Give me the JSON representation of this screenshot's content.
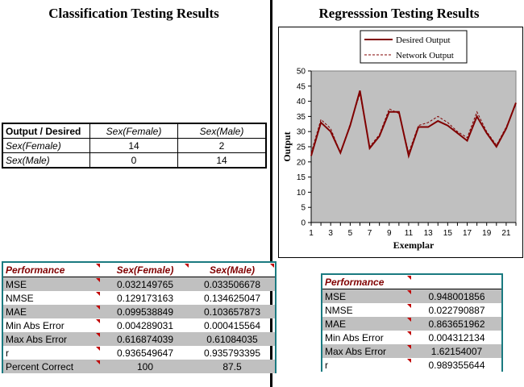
{
  "left_title": "Classification Testing Results",
  "right_title": "Regresssion Testing Results",
  "confusion": {
    "headers": [
      "Output / Desired",
      "Sex(Female)",
      "Sex(Male)"
    ],
    "rows": [
      {
        "label": "Sex(Female)",
        "values": [
          "14",
          "2"
        ]
      },
      {
        "label": "Sex(Male)",
        "values": [
          "0",
          "14"
        ]
      }
    ]
  },
  "perf_left": {
    "headers": [
      "Performance",
      "Sex(Female)",
      "Sex(Male)"
    ],
    "rows": [
      {
        "label": "MSE",
        "values": [
          "0.032149765",
          "0.033506678"
        ]
      },
      {
        "label": "NMSE",
        "values": [
          "0.129173163",
          "0.134625047"
        ]
      },
      {
        "label": "MAE",
        "values": [
          "0.099538849",
          "0.103657873"
        ]
      },
      {
        "label": "Min Abs Error",
        "values": [
          "0.004289031",
          "0.000415564"
        ]
      },
      {
        "label": "Max Abs Error",
        "values": [
          "0.616874039",
          "0.61084035"
        ]
      },
      {
        "label": "r",
        "values": [
          "0.936549647",
          "0.935793395"
        ]
      },
      {
        "label": "Percent Correct",
        "values": [
          "100",
          "87.5"
        ]
      }
    ]
  },
  "perf_right": {
    "header": "Performance",
    "rows": [
      {
        "label": "MSE",
        "value": "0.948001856"
      },
      {
        "label": "NMSE",
        "value": "0.022790887"
      },
      {
        "label": "MAE",
        "value": "0.863651962"
      },
      {
        "label": "Min Abs Error",
        "value": "0.004312134"
      },
      {
        "label": "Max Abs Error",
        "value": "1.62154007"
      },
      {
        "label": "r",
        "value": "0.989355644"
      }
    ]
  },
  "colors": {
    "teal_border": "#1a7a80",
    "header_text": "#800000",
    "plot_bg": "#c0c0c0",
    "series": "#800000"
  },
  "chart_data": {
    "type": "line",
    "xlabel": "Exemplar",
    "ylabel": "Output",
    "xlim": [
      1,
      22
    ],
    "ylim": [
      0,
      50
    ],
    "yticks": [
      0,
      5,
      10,
      15,
      20,
      25,
      30,
      35,
      40,
      45,
      50
    ],
    "xticks": [
      1,
      3,
      5,
      7,
      9,
      11,
      13,
      15,
      17,
      19,
      21
    ],
    "legend_position": "top-center",
    "grid": false,
    "x": [
      1,
      2,
      3,
      4,
      5,
      6,
      7,
      8,
      9,
      10,
      11,
      12,
      13,
      14,
      15,
      16,
      17,
      18,
      19,
      20,
      21,
      22
    ],
    "series": [
      {
        "name": "Desired Output",
        "style": "solid",
        "values": [
          22,
          33,
          30,
          23,
          32,
          43.5,
          24.5,
          28.5,
          36.5,
          36.5,
          22,
          31.5,
          31.5,
          33.5,
          32,
          29.5,
          27,
          35,
          29.5,
          25,
          31,
          39.5
        ]
      },
      {
        "name": "Network Output",
        "style": "dashed",
        "values": [
          23,
          34,
          31,
          23,
          32.5,
          42.5,
          25,
          29,
          37.5,
          36,
          23,
          32,
          33,
          35,
          33,
          30,
          28,
          36.5,
          30,
          25.5,
          31.5,
          39
        ]
      }
    ]
  }
}
